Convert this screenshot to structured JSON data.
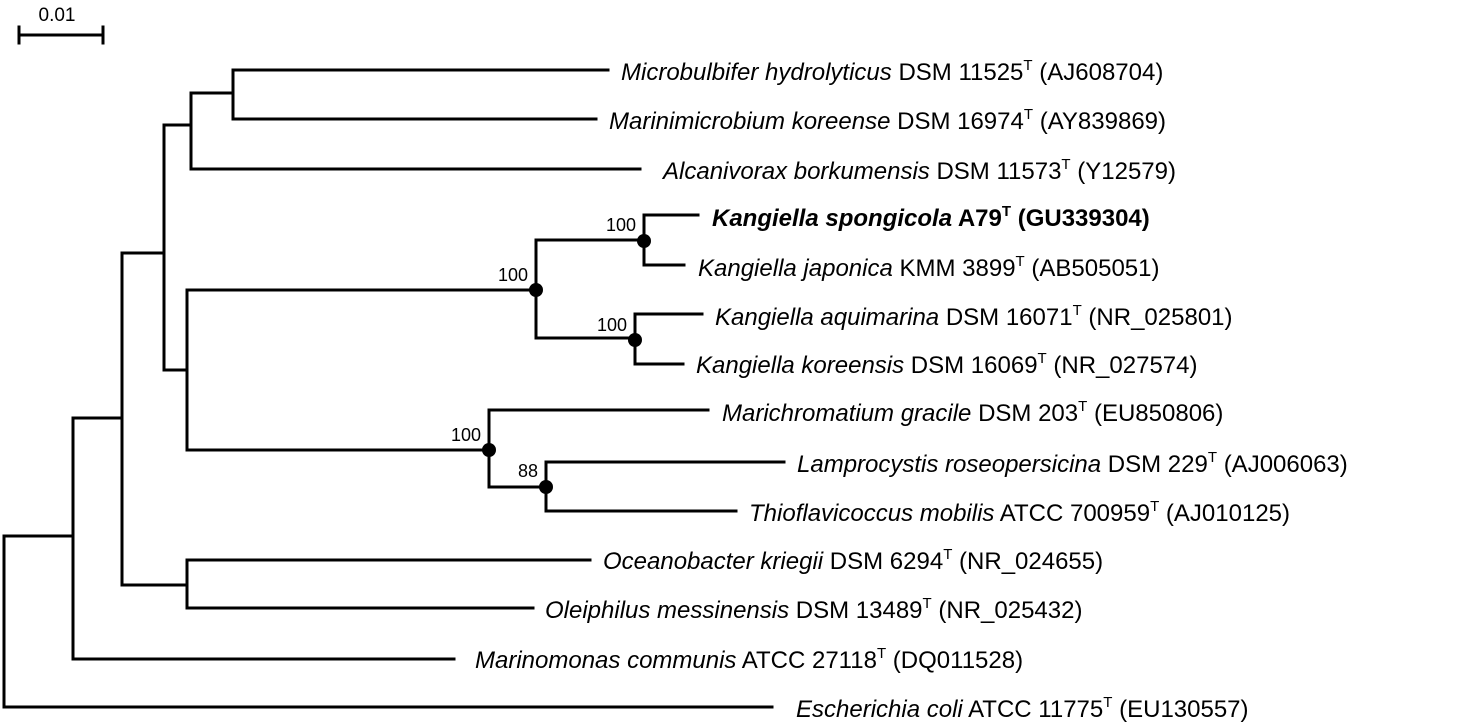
{
  "scale_bar": {
    "label": "0.01"
  },
  "taxa": [
    {
      "species": "Microbulbifer hydrolyticus",
      "strain": "DSM 11525",
      "type_mark": "T",
      "accession": "(AJ608704)"
    },
    {
      "species": "Marinimicrobium koreense",
      "strain": "DSM 16974",
      "type_mark": "T",
      "accession": "(AY839869)"
    },
    {
      "species": "Alcanivorax borkumensis",
      "strain": "DSM 11573",
      "type_mark": "T",
      "accession": "(Y12579)"
    },
    {
      "species": "Kangiella spongicola",
      "strain": "A79",
      "type_mark": "T",
      "accession": "(GU339304)",
      "highlighted": true
    },
    {
      "species": "Kangiella japonica",
      "strain": "KMM 3899",
      "type_mark": "T",
      "accession": "(AB505051)"
    },
    {
      "species": "Kangiella aquimarina",
      "strain": "DSM 16071",
      "type_mark": "T",
      "accession": "(NR_025801)"
    },
    {
      "species": "Kangiella koreensis",
      "strain": "DSM 16069",
      "type_mark": "T",
      "accession": "(NR_027574)"
    },
    {
      "species": "Marichromatium gracile",
      "strain": "DSM 203",
      "type_mark": "T",
      "accession": "(EU850806)"
    },
    {
      "species": "Lamprocystis roseopersicina",
      "strain": "DSM 229",
      "type_mark": "T",
      "accession": "(AJ006063)"
    },
    {
      "species": "Thioflavicoccus mobilis",
      "strain": "ATCC 700959",
      "type_mark": "T",
      "accession": "(AJ010125)"
    },
    {
      "species": "Oceanobacter kriegii",
      "strain": "DSM 6294",
      "type_mark": "T",
      "accession": "(NR_024655)"
    },
    {
      "species": "Oleiphilus messinensis",
      "strain": "DSM 13489",
      "type_mark": "T",
      "accession": "(NR_025432)"
    },
    {
      "species": "Marinomonas communis",
      "strain": "ATCC 27118",
      "type_mark": "T",
      "accession": "(DQ011528)"
    },
    {
      "species": "Escherichia coli",
      "strain": "ATCC 11775",
      "type_mark": "T",
      "accession": "(EU130557)"
    }
  ],
  "bootstrap_values": {
    "kangiella_spongicola_japonica": "100",
    "kangiella_genus": "100",
    "kangiella_aquimarina_koreensis": "100",
    "chromatiaceae_group": "100",
    "lamprocystis_thioflavicoccus": "88"
  }
}
